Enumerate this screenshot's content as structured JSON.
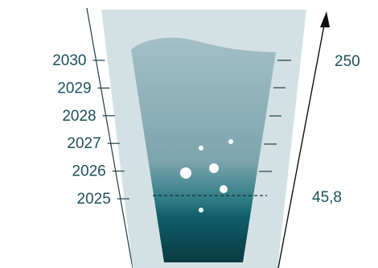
{
  "years": [
    "2030",
    "2029",
    "2028",
    "2027",
    "2026",
    "2025"
  ],
  "values": {
    "top": "250",
    "bottom": "45,8"
  }
}
